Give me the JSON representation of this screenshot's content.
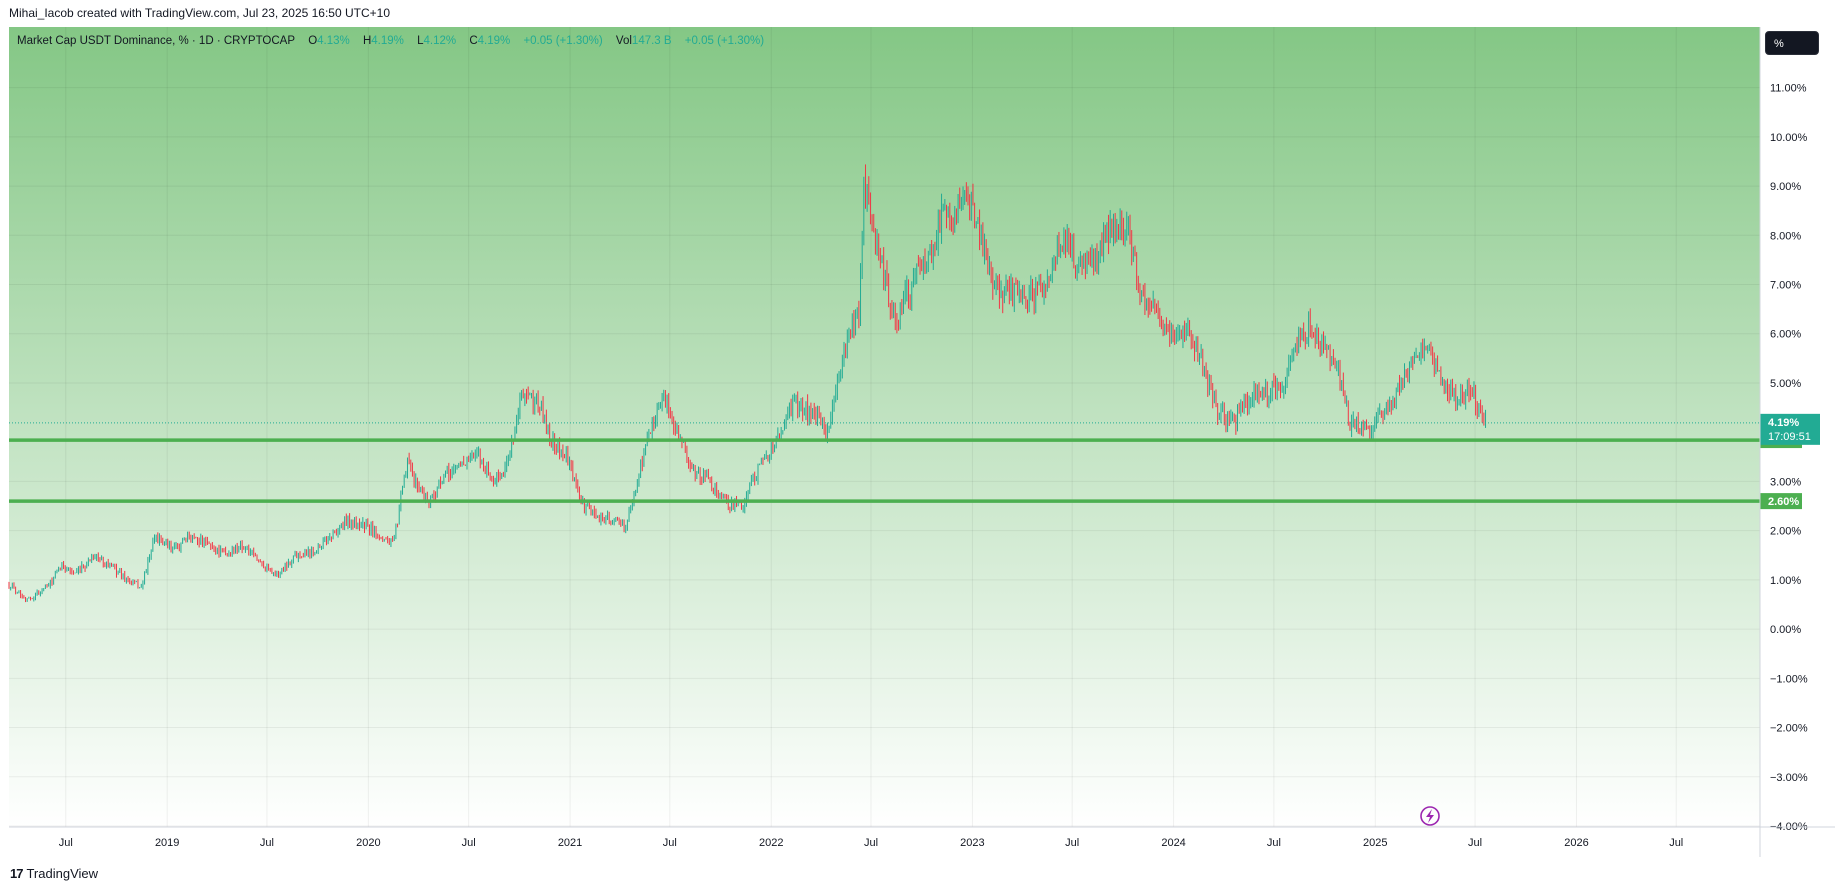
{
  "header": {
    "credit": "Mihai_Iacob created with TradingView.com, Jul 23, 2025 16:50 UTC+10"
  },
  "legend": {
    "symbol": "Market Cap USDT Dominance, % · 1D · CRYPTOCAP",
    "open_label": "O",
    "open_value": "4.13%",
    "high_label": "H",
    "high_value": "4.19%",
    "low_label": "L",
    "low_value": "4.12%",
    "close_label": "C",
    "close_value": "4.19%",
    "change": "+0.05 (+1.30%)",
    "vol_label": "Vol",
    "vol_value": "147.3 B",
    "vol_change": "+0.05 (+1.30%)"
  },
  "toolbar": {
    "scale_label": "%"
  },
  "footer": {
    "brand": "TradingView"
  },
  "colors": {
    "up": "#22ab94",
    "down": "#f23645",
    "level_line": "#4caf50",
    "background_top": "#84c785",
    "background_bottom": "#ffffff",
    "price_tag": "#22ab94"
  },
  "chart_data": {
    "type": "candlestick",
    "x_range": [
      "2018-03-20",
      "2026-11-30"
    ],
    "ylim": [
      -4.0,
      11.5
    ],
    "y_ticks": [
      "11.00%",
      "10.00%",
      "9.00%",
      "8.00%",
      "7.00%",
      "6.00%",
      "5.00%",
      "3.00%",
      "2.00%",
      "1.00%",
      "0.00%",
      "−1.00%",
      "−2.00%",
      "−3.00%",
      "−4.00%"
    ],
    "y_tick_values": [
      11,
      10,
      9,
      8,
      7,
      6,
      5,
      3,
      2,
      1,
      0,
      -1,
      -2,
      -3,
      -4
    ],
    "x_ticks": [
      {
        "label": "Jul",
        "date": "2018-07-01"
      },
      {
        "label": "2019",
        "date": "2019-01-01"
      },
      {
        "label": "Jul",
        "date": "2019-07-01"
      },
      {
        "label": "2020",
        "date": "2020-01-01"
      },
      {
        "label": "Jul",
        "date": "2020-07-01"
      },
      {
        "label": "2021",
        "date": "2021-01-01"
      },
      {
        "label": "Jul",
        "date": "2021-07-01"
      },
      {
        "label": "2022",
        "date": "2022-01-01"
      },
      {
        "label": "Jul",
        "date": "2022-07-01"
      },
      {
        "label": "2023",
        "date": "2023-01-01"
      },
      {
        "label": "Jul",
        "date": "2023-07-01"
      },
      {
        "label": "2024",
        "date": "2024-01-01"
      },
      {
        "label": "Jul",
        "date": "2024-07-01"
      },
      {
        "label": "2025",
        "date": "2025-01-01"
      },
      {
        "label": "Jul",
        "date": "2025-07-01"
      },
      {
        "label": "2026",
        "date": "2026-01-01"
      },
      {
        "label": "Jul",
        "date": "2026-07-01"
      }
    ],
    "series": [
      {
        "points": [
          [
            "2018-03-20",
            0.9
          ],
          [
            "2018-04-25",
            0.6
          ],
          [
            "2018-06-01",
            0.9
          ],
          [
            "2018-06-25",
            1.3
          ],
          [
            "2018-07-20",
            1.1
          ],
          [
            "2018-08-20",
            1.5
          ],
          [
            "2018-09-20",
            1.3
          ],
          [
            "2018-10-20",
            1.0
          ],
          [
            "2018-11-15",
            0.85
          ],
          [
            "2018-12-10",
            1.9
          ],
          [
            "2019-01-10",
            1.6
          ],
          [
            "2019-02-15",
            1.9
          ],
          [
            "2019-03-20",
            1.7
          ],
          [
            "2019-04-20",
            1.5
          ],
          [
            "2019-05-15",
            1.7
          ],
          [
            "2019-06-15",
            1.4
          ],
          [
            "2019-07-20",
            1.1
          ],
          [
            "2019-08-20",
            1.5
          ],
          [
            "2019-09-25",
            1.6
          ],
          [
            "2019-10-25",
            1.9
          ],
          [
            "2019-11-25",
            2.2
          ],
          [
            "2019-12-25",
            2.1
          ],
          [
            "2020-01-25",
            1.9
          ],
          [
            "2020-02-15",
            1.7
          ],
          [
            "2020-03-12",
            3.4
          ],
          [
            "2020-03-25",
            3.0
          ],
          [
            "2020-04-20",
            2.6
          ],
          [
            "2020-05-20",
            3.1
          ],
          [
            "2020-06-20",
            3.4
          ],
          [
            "2020-07-20",
            3.5
          ],
          [
            "2020-08-15",
            3.0
          ],
          [
            "2020-09-05",
            3.2
          ],
          [
            "2020-10-05",
            4.7
          ],
          [
            "2020-11-05",
            4.6
          ],
          [
            "2020-11-25",
            3.9
          ],
          [
            "2020-12-25",
            3.5
          ],
          [
            "2021-01-25",
            2.5
          ],
          [
            "2021-02-20",
            2.3
          ],
          [
            "2021-03-20",
            2.2
          ],
          [
            "2021-04-10",
            2.1
          ],
          [
            "2021-04-25",
            2.6
          ],
          [
            "2021-05-15",
            3.6
          ],
          [
            "2021-06-15",
            4.7
          ],
          [
            "2021-07-10",
            4.2
          ],
          [
            "2021-08-10",
            3.2
          ],
          [
            "2021-09-10",
            3.0
          ],
          [
            "2021-10-10",
            2.6
          ],
          [
            "2021-11-08",
            2.5
          ],
          [
            "2021-12-10",
            3.3
          ],
          [
            "2022-01-15",
            3.9
          ],
          [
            "2022-02-10",
            4.6
          ],
          [
            "2022-03-15",
            4.4
          ],
          [
            "2022-04-15",
            4.0
          ],
          [
            "2022-05-10",
            5.5
          ],
          [
            "2022-06-10",
            6.5
          ],
          [
            "2022-06-18",
            9.0
          ],
          [
            "2022-07-15",
            7.6
          ],
          [
            "2022-08-15",
            6.2
          ],
          [
            "2022-09-20",
            7.2
          ],
          [
            "2022-10-20",
            7.7
          ],
          [
            "2022-11-10",
            8.6
          ],
          [
            "2022-12-01",
            8.5
          ],
          [
            "2022-12-25",
            8.7
          ],
          [
            "2023-01-15",
            7.9
          ],
          [
            "2023-02-15",
            6.8
          ],
          [
            "2023-03-15",
            6.9
          ],
          [
            "2023-04-15",
            6.7
          ],
          [
            "2023-05-15",
            7.1
          ],
          [
            "2023-06-15",
            8.0
          ],
          [
            "2023-07-15",
            7.3
          ],
          [
            "2023-08-15",
            7.5
          ],
          [
            "2023-09-15",
            8.3
          ],
          [
            "2023-10-10",
            8.1
          ],
          [
            "2023-10-30",
            7.0
          ],
          [
            "2023-11-30",
            6.4
          ],
          [
            "2024-01-01",
            5.9
          ],
          [
            "2024-01-25",
            6.2
          ],
          [
            "2024-02-25",
            5.3
          ],
          [
            "2024-03-20",
            4.4
          ],
          [
            "2024-04-20",
            4.2
          ],
          [
            "2024-05-20",
            4.7
          ],
          [
            "2024-06-20",
            4.8
          ],
          [
            "2024-07-20",
            5.0
          ],
          [
            "2024-08-10",
            5.8
          ],
          [
            "2024-09-01",
            6.1
          ],
          [
            "2024-10-01",
            5.7
          ],
          [
            "2024-10-25",
            5.3
          ],
          [
            "2024-11-15",
            4.2
          ],
          [
            "2024-12-10",
            4.0
          ],
          [
            "2025-01-01",
            4.2
          ],
          [
            "2025-02-01",
            4.6
          ],
          [
            "2025-03-01",
            5.2
          ],
          [
            "2025-04-01",
            5.8
          ],
          [
            "2025-04-20",
            5.3
          ],
          [
            "2025-05-10",
            4.8
          ],
          [
            "2025-06-10",
            4.7
          ],
          [
            "2025-06-25",
            4.8
          ],
          [
            "2025-07-10",
            4.4
          ],
          [
            "2025-07-22",
            4.19
          ]
        ]
      }
    ],
    "levels": [
      {
        "value": 3.84,
        "label": "3.84%"
      },
      {
        "value": 2.6,
        "label": "2.60%"
      }
    ],
    "last_price": {
      "value": 4.19,
      "label": "4.19%",
      "countdown": "17:09:51"
    },
    "grid": true
  }
}
